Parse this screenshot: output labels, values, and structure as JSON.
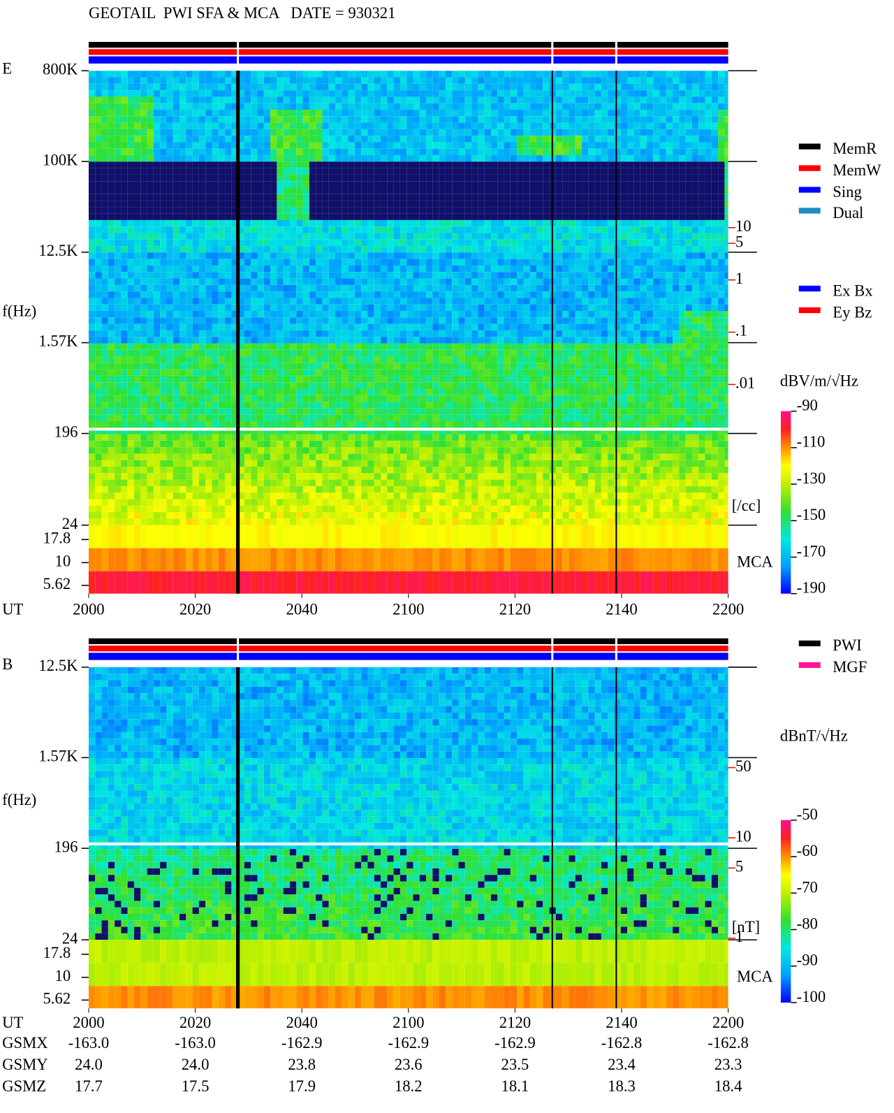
{
  "chart_data": [
    {
      "type": "spectrogram",
      "title": "GEOTAIL  PWI SFA & MCA   DATE = 930321",
      "panel_label": "E",
      "ylabel": "f(Hz)",
      "xlabel": "UT",
      "log_y": true,
      "ylim": [
        24,
        800000
      ],
      "yticks": [
        {
          "value": 800000,
          "label": "800K"
        },
        {
          "value": 100000,
          "label": "100K"
        },
        {
          "value": 12500,
          "label": "12.5K"
        },
        {
          "value": 1570,
          "label": "1.57K"
        },
        196,
        24
      ],
      "mca_label": "MCA",
      "mca_ticks": [
        17.8,
        10,
        5.62
      ],
      "xlim": [
        "20:00",
        "22:00"
      ],
      "xticks": [
        {
          "value": "20:00",
          "label": "2000"
        },
        {
          "value": "20:20",
          "label": "2020"
        },
        {
          "value": "20:40",
          "label": "2040"
        },
        {
          "value": "21:00",
          "label": "2100"
        },
        {
          "value": "21:20",
          "label": "2120"
        },
        {
          "value": "21:40",
          "label": "2140"
        },
        {
          "value": "22:00",
          "label": "2200"
        }
      ],
      "y2lim": [
        1e-06,
        10000
      ],
      "y2ticks": [
        10,
        5,
        1,
        {
          "value": 0.1,
          "label": ".1"
        },
        {
          "value": 0.01,
          "label": ".01"
        }
      ],
      "y2label": "[/cc]",
      "y2color": "#ff0000",
      "colorbar": {
        "label": "dBV/m/√Hz",
        "lim": [
          -190,
          -90
        ],
        "ticks": [
          -90,
          -110,
          -130,
          -150,
          -170,
          -190
        ]
      },
      "legend": [
        {
          "name": "MemR",
          "color": "#000000"
        },
        {
          "name": "MemW",
          "color": "#ff0000"
        },
        {
          "name": "Sing",
          "color": "#0000ff"
        },
        {
          "name": "Dual",
          "color": "#1e8bc3"
        }
      ],
      "legend2": [
        {
          "name": "Ex Bx",
          "color": "#0000ff"
        },
        {
          "name": "Ey Bz",
          "color": "#ff0000"
        }
      ],
      "data_gaps": [
        "20:28",
        "21:27",
        "21:39"
      ]
    },
    {
      "type": "spectrogram",
      "panel_label": "B",
      "ylabel": "f(Hz)",
      "xlabel": "UT",
      "log_y": true,
      "ylim": [
        24,
        12500
      ],
      "yticks": [
        {
          "value": 12500,
          "label": "12.5K"
        },
        {
          "value": 1570,
          "label": "1.57K"
        },
        196,
        24
      ],
      "mca_label": "MCA",
      "mca_ticks": [
        17.8,
        10,
        5.62
      ],
      "xlim": [
        "20:00",
        "22:00"
      ],
      "xticks": [
        {
          "value": "20:00",
          "label": "2000"
        },
        {
          "value": "20:20",
          "label": "2020"
        },
        {
          "value": "20:40",
          "label": "2040"
        },
        {
          "value": "21:00",
          "label": "2100"
        },
        {
          "value": "21:20",
          "label": "2120"
        },
        {
          "value": "21:40",
          "label": "2140"
        },
        {
          "value": "22:00",
          "label": "2200"
        }
      ],
      "y2lim": [
        0.2,
        500
      ],
      "y2ticks": [
        50,
        10,
        5,
        1
      ],
      "y2label": "[nT]",
      "y2color": "#ff0000",
      "colorbar": {
        "label": "dBnT/√Hz",
        "lim": [
          -100,
          -50
        ],
        "ticks": [
          -50,
          -60,
          -70,
          -80,
          -90,
          -100
        ]
      },
      "legend": [
        {
          "name": "PWI",
          "color": "#000000"
        },
        {
          "name": "MGF",
          "color": "#ff1493"
        }
      ],
      "data_gaps": [
        "20:28",
        "21:27",
        "21:39"
      ]
    }
  ],
  "orbit": {
    "rows": [
      {
        "label": "GSMX",
        "values": [
          "-163.0",
          "-163.0",
          "-162.9",
          "-162.9",
          "-162.9",
          "-162.8",
          "-162.8"
        ]
      },
      {
        "label": "GSMY",
        "values": [
          "24.0",
          "24.0",
          "23.8",
          "23.6",
          "23.5",
          "23.4",
          "23.3"
        ]
      },
      {
        "label": "GSMZ",
        "values": [
          "17.7",
          "17.5",
          "17.9",
          "18.2",
          "18.1",
          "18.3",
          "18.4"
        ]
      }
    ]
  }
}
